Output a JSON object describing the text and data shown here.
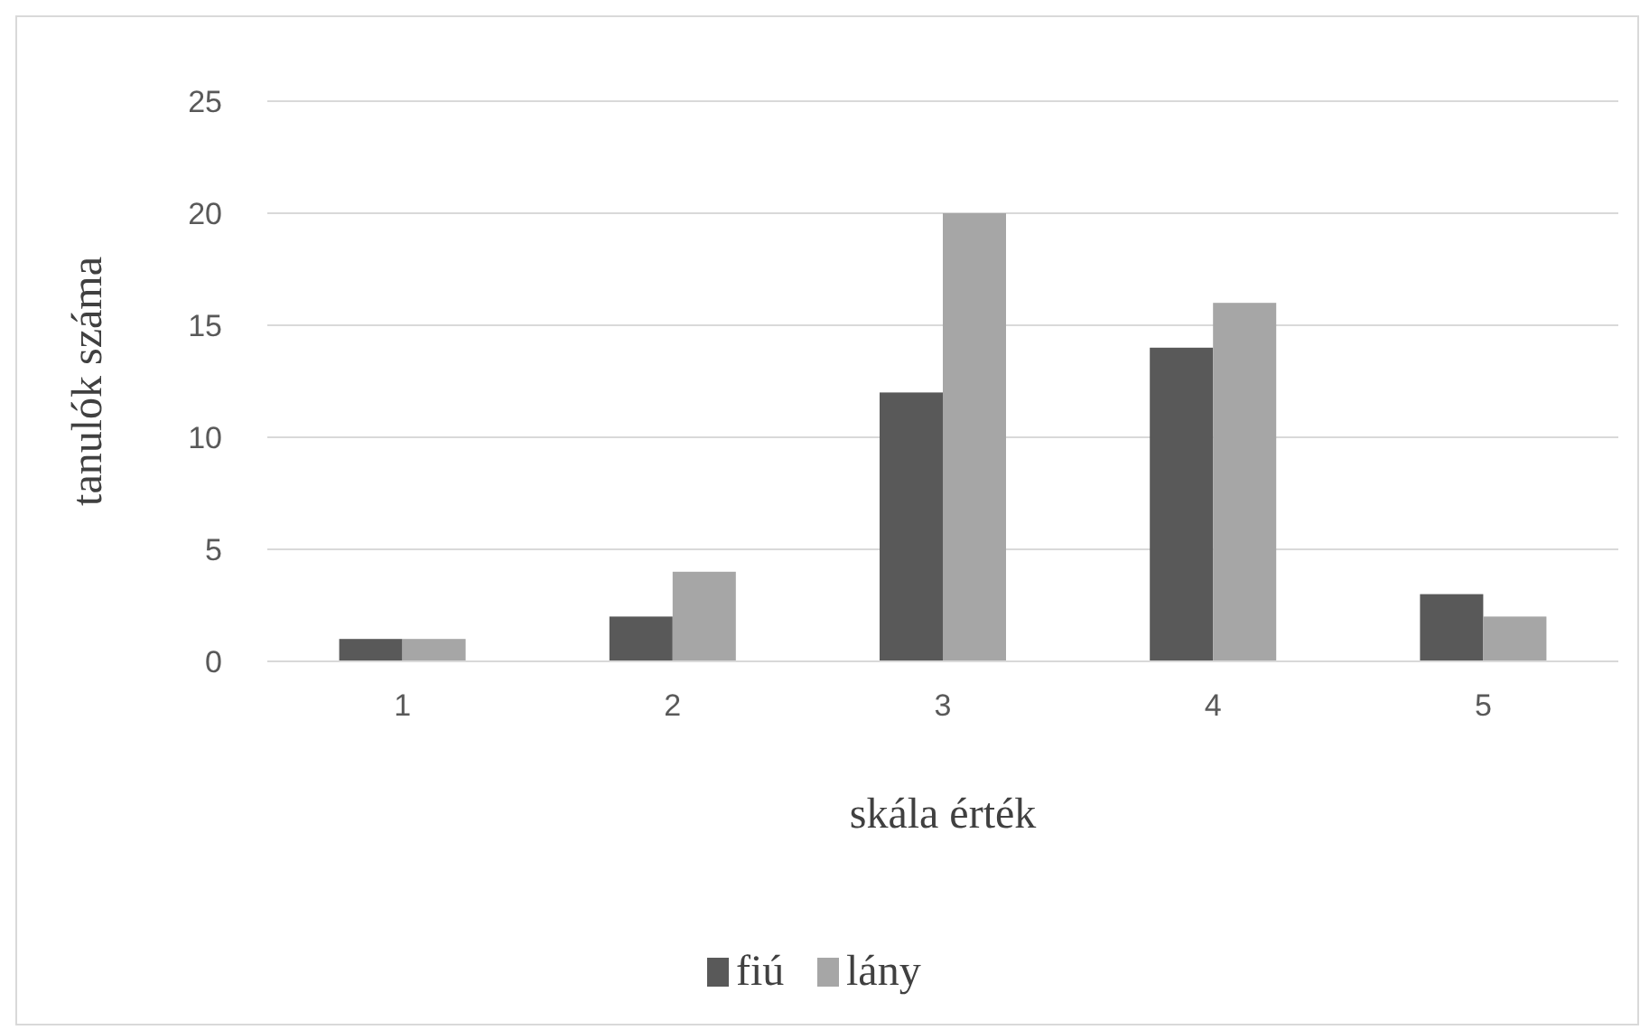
{
  "chart_data": {
    "type": "bar",
    "xlabel": "skála érték",
    "ylabel": "tanulók száma",
    "categories": [
      "1",
      "2",
      "3",
      "4",
      "5"
    ],
    "series": [
      {
        "name": "fiú",
        "color": "#595959",
        "values": [
          1,
          2,
          12,
          14,
          3
        ]
      },
      {
        "name": "lány",
        "color": "#a6a6a6",
        "values": [
          1,
          4,
          20,
          16,
          2
        ]
      }
    ],
    "ylim": [
      0,
      25
    ],
    "yticks": [
      0,
      5,
      10,
      15,
      20,
      25
    ],
    "grid": "y",
    "legend": "bottom"
  }
}
